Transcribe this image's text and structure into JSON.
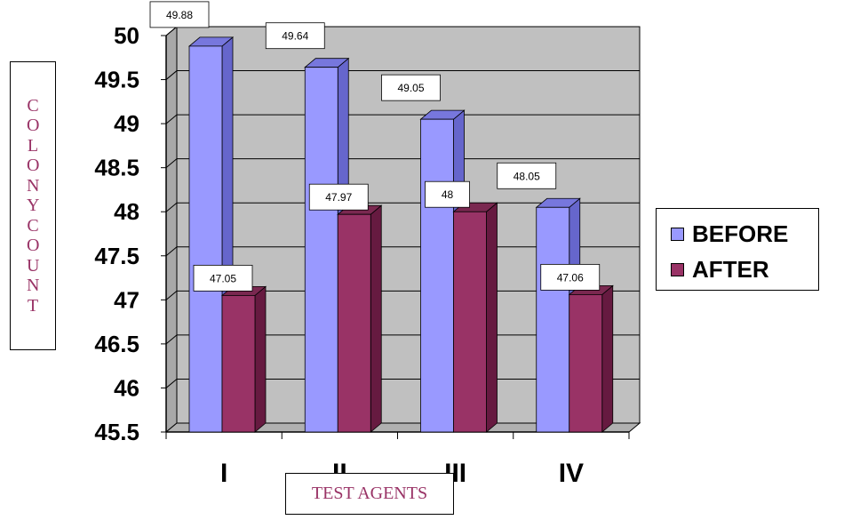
{
  "chart_data": {
    "type": "bar",
    "categories": [
      "I",
      "II",
      "III",
      "IV"
    ],
    "series": [
      {
        "name": "BEFORE",
        "values": [
          49.88,
          49.64,
          49.05,
          48.05
        ],
        "data_labels": [
          "49.88",
          "49.64",
          "49.05",
          "48.05"
        ]
      },
      {
        "name": "AFTER",
        "values": [
          47.05,
          47.97,
          48,
          47.06
        ],
        "data_labels": [
          "47.05",
          "47.97",
          "48",
          "47.06"
        ]
      }
    ],
    "title": "",
    "xlabel": "TEST AGENTS",
    "ylabel": "COLONYCOUNT",
    "ylim": [
      45.5,
      50
    ],
    "yticks": [
      "50",
      "49.5",
      "49",
      "48.5",
      "48",
      "47.5",
      "47",
      "46.5",
      "46",
      "45.5"
    ],
    "grid": true,
    "legend_position": "right",
    "colors": {
      "before_front": "#9999ff",
      "before_side": "#6666cc",
      "before_top": "#7777dd",
      "after_front": "#993366",
      "after_side": "#661a40",
      "after_top": "#7a2850",
      "wall": "#c0c0c0",
      "floor": "#b0b0b0",
      "label_color": "#993366"
    }
  }
}
